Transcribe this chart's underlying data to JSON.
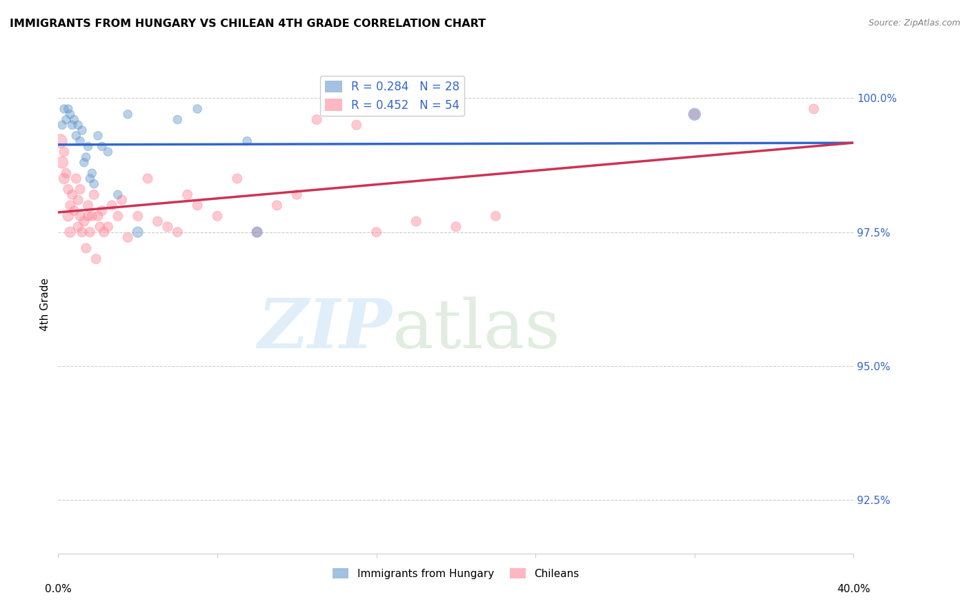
{
  "title": "IMMIGRANTS FROM HUNGARY VS CHILEAN 4TH GRADE CORRELATION CHART",
  "source": "Source: ZipAtlas.com",
  "ylabel": "4th Grade",
  "yticks": [
    92.5,
    95.0,
    97.5,
    100.0
  ],
  "ytick_labels": [
    "92.5%",
    "95.0%",
    "97.5%",
    "100.0%"
  ],
  "xlim": [
    0.0,
    0.4
  ],
  "ylim": [
    91.5,
    100.8
  ],
  "legend_r_labels": [
    "R = 0.284   N = 28",
    "R = 0.452   N = 54"
  ],
  "legend_labels": [
    "Immigrants from Hungary",
    "Chileans"
  ],
  "blue_color": "#6699cc",
  "pink_color": "#ff8899",
  "blue_line_color": "#3366cc",
  "pink_line_color": "#cc3355",
  "hungary_x": [
    0.002,
    0.003,
    0.004,
    0.005,
    0.006,
    0.007,
    0.008,
    0.009,
    0.01,
    0.011,
    0.012,
    0.013,
    0.014,
    0.015,
    0.016,
    0.017,
    0.018,
    0.02,
    0.022,
    0.025,
    0.03,
    0.035,
    0.04,
    0.06,
    0.07,
    0.095,
    0.1,
    0.32
  ],
  "hungary_y": [
    99.5,
    99.8,
    99.6,
    99.8,
    99.7,
    99.5,
    99.6,
    99.3,
    99.5,
    99.2,
    99.4,
    98.8,
    98.9,
    99.1,
    98.5,
    98.6,
    98.4,
    99.3,
    99.1,
    99.0,
    98.2,
    99.7,
    97.5,
    99.6,
    99.8,
    99.2,
    97.5,
    99.7
  ],
  "hungary_sizes": [
    80,
    80,
    80,
    80,
    80,
    80,
    80,
    80,
    80,
    80,
    80,
    80,
    80,
    80,
    80,
    80,
    80,
    80,
    80,
    80,
    80,
    80,
    120,
    80,
    80,
    80,
    120,
    160
  ],
  "chilean_x": [
    0.001,
    0.002,
    0.003,
    0.003,
    0.004,
    0.005,
    0.005,
    0.006,
    0.006,
    0.007,
    0.008,
    0.009,
    0.01,
    0.01,
    0.011,
    0.011,
    0.012,
    0.013,
    0.014,
    0.015,
    0.015,
    0.016,
    0.017,
    0.018,
    0.019,
    0.02,
    0.021,
    0.022,
    0.023,
    0.025,
    0.027,
    0.03,
    0.032,
    0.035,
    0.04,
    0.045,
    0.05,
    0.055,
    0.06,
    0.065,
    0.07,
    0.08,
    0.09,
    0.1,
    0.11,
    0.12,
    0.13,
    0.15,
    0.16,
    0.18,
    0.2,
    0.22,
    0.32,
    0.38
  ],
  "chilean_y": [
    99.2,
    98.8,
    98.5,
    99.0,
    98.6,
    97.8,
    98.3,
    98.0,
    97.5,
    98.2,
    97.9,
    98.5,
    97.6,
    98.1,
    97.8,
    98.3,
    97.5,
    97.7,
    97.2,
    97.8,
    98.0,
    97.5,
    97.8,
    98.2,
    97.0,
    97.8,
    97.6,
    97.9,
    97.5,
    97.6,
    98.0,
    97.8,
    98.1,
    97.4,
    97.8,
    98.5,
    97.7,
    97.6,
    97.5,
    98.2,
    98.0,
    97.8,
    98.5,
    97.5,
    98.0,
    98.2,
    99.6,
    99.5,
    97.5,
    97.7,
    97.6,
    97.8,
    99.7,
    99.8
  ],
  "chilean_sizes": [
    200,
    150,
    120,
    100,
    100,
    120,
    100,
    100,
    120,
    100,
    100,
    100,
    100,
    100,
    100,
    100,
    100,
    100,
    100,
    100,
    100,
    100,
    100,
    100,
    100,
    100,
    100,
    100,
    100,
    100,
    100,
    100,
    100,
    100,
    100,
    100,
    100,
    100,
    100,
    100,
    100,
    100,
    100,
    100,
    100,
    100,
    100,
    100,
    100,
    100,
    100,
    100,
    100,
    100
  ]
}
